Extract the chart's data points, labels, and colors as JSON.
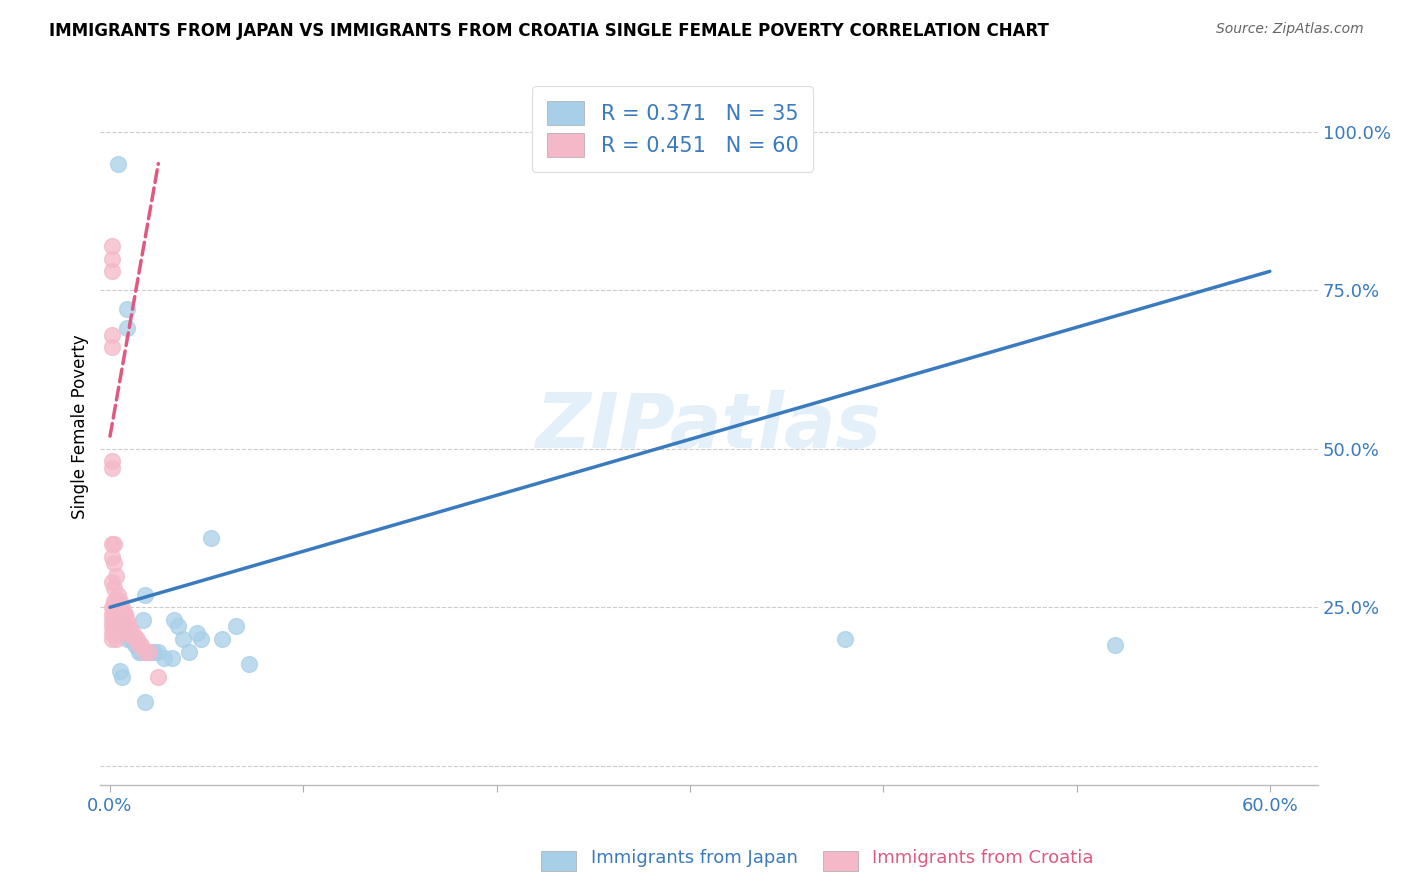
{
  "title": "IMMIGRANTS FROM JAPAN VS IMMIGRANTS FROM CROATIA SINGLE FEMALE POVERTY CORRELATION CHART",
  "source": "Source: ZipAtlas.com",
  "xlabel_japan": "Immigrants from Japan",
  "xlabel_croatia": "Immigrants from Croatia",
  "ylabel": "Single Female Poverty",
  "watermark": "ZIPatlas",
  "japan_R": 0.371,
  "japan_N": 35,
  "croatia_R": 0.451,
  "croatia_N": 60,
  "japan_color": "#a8cfe8",
  "croatia_color": "#f4b8c8",
  "japan_line_color": "#3a7abf",
  "croatia_line_color": "#e05a80",
  "tick_color": "#3a7abf",
  "xlim": [
    -0.005,
    0.625
  ],
  "ylim": [
    -0.03,
    1.1
  ],
  "x_ticks": [
    0.0,
    0.1,
    0.2,
    0.3,
    0.4,
    0.5,
    0.6
  ],
  "x_tick_labels": [
    "0.0%",
    "",
    "",
    "",
    "",
    "",
    "60.0%"
  ],
  "y_ticks": [
    0.0,
    0.25,
    0.5,
    0.75,
    1.0
  ],
  "y_tick_labels": [
    "",
    "25.0%",
    "50.0%",
    "75.0%",
    "100.0%"
  ],
  "japan_scatter_x": [
    0.004,
    0.009,
    0.018,
    0.009,
    0.018,
    0.033,
    0.005,
    0.007,
    0.008,
    0.009,
    0.011,
    0.013,
    0.014,
    0.015,
    0.016,
    0.017,
    0.019,
    0.021,
    0.023,
    0.025,
    0.028,
    0.032,
    0.035,
    0.038,
    0.041,
    0.045,
    0.047,
    0.052,
    0.058,
    0.065,
    0.072,
    0.38,
    0.52,
    0.005,
    0.006
  ],
  "japan_scatter_y": [
    0.95,
    0.69,
    0.1,
    0.72,
    0.27,
    0.23,
    0.22,
    0.22,
    0.21,
    0.2,
    0.2,
    0.19,
    0.19,
    0.18,
    0.18,
    0.23,
    0.18,
    0.18,
    0.18,
    0.18,
    0.17,
    0.17,
    0.22,
    0.2,
    0.18,
    0.21,
    0.2,
    0.36,
    0.2,
    0.22,
    0.16,
    0.2,
    0.19,
    0.15,
    0.14
  ],
  "croatia_scatter_x": [
    0.001,
    0.001,
    0.001,
    0.001,
    0.001,
    0.001,
    0.001,
    0.001,
    0.001,
    0.001,
    0.001,
    0.001,
    0.001,
    0.001,
    0.001,
    0.001,
    0.002,
    0.002,
    0.002,
    0.002,
    0.002,
    0.002,
    0.002,
    0.002,
    0.002,
    0.003,
    0.003,
    0.003,
    0.003,
    0.003,
    0.003,
    0.003,
    0.004,
    0.004,
    0.004,
    0.004,
    0.004,
    0.005,
    0.005,
    0.005,
    0.005,
    0.006,
    0.006,
    0.007,
    0.007,
    0.008,
    0.008,
    0.009,
    0.009,
    0.009,
    0.01,
    0.011,
    0.012,
    0.013,
    0.014,
    0.015,
    0.016,
    0.018,
    0.02,
    0.025
  ],
  "croatia_scatter_y": [
    0.82,
    0.8,
    0.78,
    0.68,
    0.66,
    0.48,
    0.47,
    0.35,
    0.33,
    0.29,
    0.25,
    0.24,
    0.23,
    0.22,
    0.21,
    0.2,
    0.35,
    0.32,
    0.28,
    0.26,
    0.25,
    0.24,
    0.23,
    0.22,
    0.21,
    0.3,
    0.26,
    0.24,
    0.23,
    0.22,
    0.21,
    0.2,
    0.27,
    0.25,
    0.24,
    0.23,
    0.22,
    0.26,
    0.25,
    0.24,
    0.23,
    0.25,
    0.24,
    0.24,
    0.23,
    0.24,
    0.23,
    0.23,
    0.22,
    0.21,
    0.22,
    0.21,
    0.21,
    0.2,
    0.2,
    0.19,
    0.19,
    0.18,
    0.18,
    0.14
  ],
  "japan_trend_x": [
    0.0,
    0.6
  ],
  "japan_trend_y": [
    0.25,
    0.78
  ],
  "croatia_trend_x": [
    0.0,
    0.025
  ],
  "croatia_trend_y": [
    0.52,
    0.95
  ]
}
